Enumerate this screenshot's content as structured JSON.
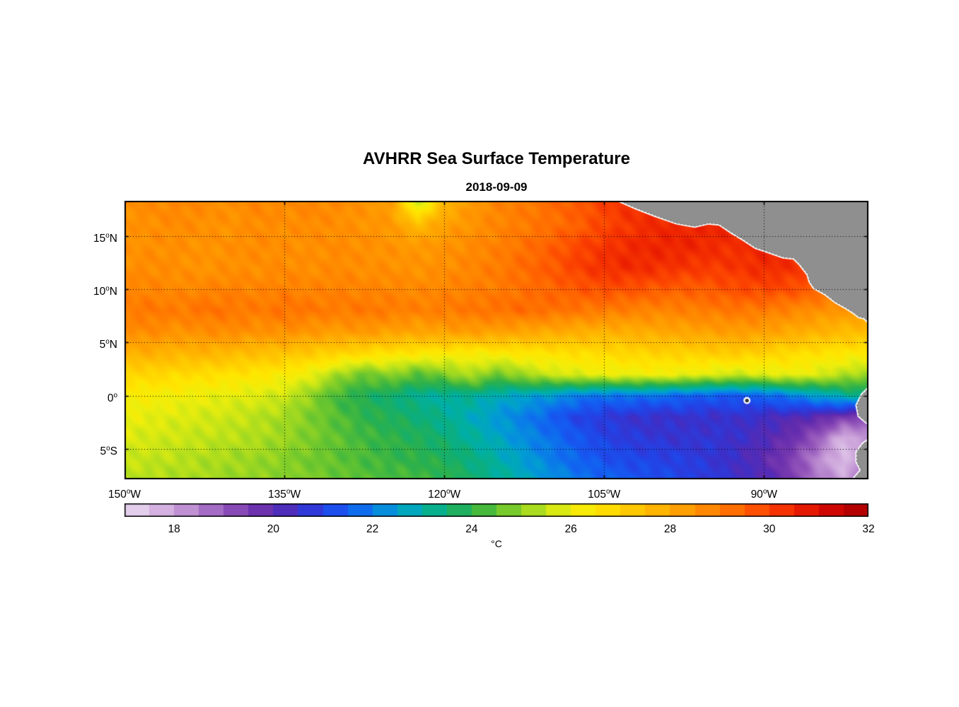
{
  "figure": {
    "title": "AVHRR Sea Surface Temperature",
    "subtitle": "2018-09-09"
  },
  "chart_data": {
    "type": "heatmap",
    "title": "AVHRR Sea Surface Temperature",
    "subtitle": "2018-09-09",
    "xlabel": "",
    "ylabel": "",
    "grid": true,
    "deg_glyph": "o",
    "xlim": [
      -150,
      -80.2
    ],
    "ylim": [
      -7.85,
      18.3
    ],
    "x_ticks": [
      {
        "value": -150,
        "num": "150",
        "hem": "W"
      },
      {
        "value": -135,
        "num": "135",
        "hem": "W"
      },
      {
        "value": -120,
        "num": "120",
        "hem": "W"
      },
      {
        "value": -105,
        "num": "105",
        "hem": "W"
      },
      {
        "value": -90,
        "num": "90",
        "hem": "W"
      }
    ],
    "y_ticks": [
      {
        "value": 15,
        "num": "15",
        "hem": "N"
      },
      {
        "value": 10,
        "num": "10",
        "hem": "N"
      },
      {
        "value": 5,
        "num": "5",
        "hem": "N"
      },
      {
        "value": 0,
        "num": "0",
        "hem": ""
      },
      {
        "value": -5,
        "num": "5",
        "hem": "S"
      }
    ],
    "colorbar": {
      "orientation": "horizontal",
      "range": [
        17,
        32
      ],
      "segment_step": 0.5,
      "ticks": [
        18,
        20,
        22,
        24,
        26,
        28,
        30,
        32
      ],
      "unit": "°C",
      "colormap": [
        {
          "t": 17.0,
          "c": "#EADCEF"
        },
        {
          "t": 17.5,
          "c": "#DCC0E6"
        },
        {
          "t": 18.0,
          "c": "#CBA2DA"
        },
        {
          "t": 18.5,
          "c": "#B27FCB"
        },
        {
          "t": 19.0,
          "c": "#9659BC"
        },
        {
          "t": 19.5,
          "c": "#7A3BB0"
        },
        {
          "t": 20.0,
          "c": "#5F2AAE"
        },
        {
          "t": 20.5,
          "c": "#3C2FC8"
        },
        {
          "t": 21.0,
          "c": "#2342E6"
        },
        {
          "t": 21.5,
          "c": "#145CF2"
        },
        {
          "t": 22.0,
          "c": "#0A7EE8"
        },
        {
          "t": 22.5,
          "c": "#019ED2"
        },
        {
          "t": 23.0,
          "c": "#00AFA5"
        },
        {
          "t": 23.5,
          "c": "#0FAE74"
        },
        {
          "t": 24.0,
          "c": "#2EB14A"
        },
        {
          "t": 24.5,
          "c": "#5FC232"
        },
        {
          "t": 25.0,
          "c": "#90D325"
        },
        {
          "t": 25.5,
          "c": "#C3E418"
        },
        {
          "t": 26.0,
          "c": "#EEEE0C"
        },
        {
          "t": 26.5,
          "c": "#FFE600"
        },
        {
          "t": 27.0,
          "c": "#FFD200"
        },
        {
          "t": 27.5,
          "c": "#FFBE00"
        },
        {
          "t": 28.0,
          "c": "#FFAA00"
        },
        {
          "t": 28.5,
          "c": "#FF9400"
        },
        {
          "t": 29.0,
          "c": "#FF7C00"
        },
        {
          "t": 29.5,
          "c": "#FF6000"
        },
        {
          "t": 30.0,
          "c": "#FB4000"
        },
        {
          "t": 30.5,
          "c": "#EE2400"
        },
        {
          "t": 31.0,
          "c": "#DC0C00"
        },
        {
          "t": 31.5,
          "c": "#C20000"
        },
        {
          "t": 32.0,
          "c": "#A60000"
        }
      ]
    },
    "sst_grid": {
      "lons": [
        -150,
        -147.5,
        -145,
        -142.5,
        -140,
        -137.5,
        -135,
        -132.5,
        -130,
        -127.5,
        -125,
        -122.5,
        -120,
        -117.5,
        -115,
        -112.5,
        -110,
        -107.5,
        -105,
        -102.5,
        -100,
        -97.5,
        -95,
        -92.5,
        -90,
        -87.5,
        -85,
        -82.5,
        -80
      ],
      "lats": [
        18.3,
        16,
        14,
        12,
        10,
        8,
        6,
        4,
        2,
        0,
        -2,
        -4,
        -6,
        -7.85
      ],
      "values_degC": [
        [
          28.6,
          28.7,
          28.8,
          28.7,
          28.6,
          28.8,
          28.7,
          28.8,
          28.7,
          28.5,
          28.3,
          25.2,
          27.6,
          28.4,
          28.8,
          29.0,
          29.3,
          29.6,
          30.0,
          30.3,
          30.5,
          30.6,
          30.6,
          30.5,
          30.4,
          30.3,
          30.2,
          30.0,
          29.8
        ],
        [
          28.5,
          28.6,
          28.7,
          28.6,
          28.5,
          28.7,
          28.6,
          28.7,
          28.6,
          28.5,
          28.4,
          27.6,
          28.2,
          28.5,
          28.8,
          29.0,
          29.2,
          29.5,
          29.9,
          30.2,
          30.4,
          30.5,
          30.5,
          30.4,
          30.3,
          30.4,
          30.2,
          30.0,
          29.8
        ],
        [
          28.5,
          28.6,
          28.6,
          28.5,
          28.6,
          28.7,
          28.6,
          28.6,
          28.7,
          28.6,
          28.5,
          28.4,
          28.5,
          28.7,
          28.9,
          29.2,
          29.5,
          29.9,
          30.2,
          30.4,
          30.5,
          30.5,
          30.4,
          30.3,
          30.5,
          30.4,
          30.2,
          30.0,
          29.8
        ],
        [
          28.6,
          28.7,
          28.6,
          28.5,
          28.6,
          28.6,
          28.7,
          28.6,
          28.7,
          28.6,
          28.6,
          28.5,
          28.6,
          28.8,
          29.0,
          29.3,
          29.6,
          30.0,
          30.3,
          30.4,
          30.3,
          30.2,
          30.1,
          30.2,
          30.4,
          30.3,
          30.0,
          29.7,
          29.5
        ],
        [
          28.8,
          28.8,
          28.7,
          28.8,
          28.9,
          28.8,
          28.9,
          28.8,
          28.9,
          28.8,
          28.8,
          28.7,
          28.8,
          28.9,
          29.0,
          29.2,
          29.4,
          29.6,
          29.8,
          29.7,
          29.6,
          29.5,
          29.6,
          29.8,
          29.9,
          29.8,
          29.5,
          29.2,
          29.0
        ],
        [
          29.0,
          29.1,
          29.0,
          29.2,
          29.1,
          29.0,
          29.2,
          29.1,
          29.0,
          29.1,
          29.0,
          28.9,
          29.0,
          29.1,
          29.2,
          29.3,
          29.2,
          29.1,
          29.0,
          28.9,
          28.8,
          28.9,
          29.0,
          29.1,
          29.0,
          28.8,
          28.6,
          28.4,
          28.3
        ],
        [
          28.6,
          28.7,
          28.5,
          28.6,
          28.7,
          28.5,
          28.6,
          28.4,
          28.3,
          28.4,
          28.2,
          28.1,
          28.2,
          28.3,
          28.2,
          28.1,
          28.0,
          27.9,
          27.8,
          27.9,
          28.0,
          28.1,
          28.2,
          28.3,
          28.2,
          28.0,
          27.8,
          27.6,
          27.5
        ],
        [
          27.8,
          27.9,
          27.7,
          27.8,
          27.6,
          27.5,
          27.4,
          27.2,
          27.0,
          26.8,
          26.6,
          26.5,
          26.4,
          26.3,
          26.4,
          26.5,
          26.6,
          26.7,
          26.8,
          26.9,
          27.0,
          27.0,
          27.1,
          27.2,
          27.0,
          26.8,
          26.6,
          26.5,
          26.4
        ],
        [
          26.8,
          26.9,
          26.8,
          26.7,
          26.6,
          26.5,
          26.3,
          26.0,
          25.2,
          24.6,
          25.0,
          24.4,
          24.8,
          25.4,
          24.6,
          25.2,
          25.6,
          25.8,
          26.0,
          26.0,
          26.1,
          26.0,
          25.8,
          25.6,
          25.8,
          26.0,
          25.8,
          25.4,
          25.0
        ],
        [
          26.3,
          26.2,
          26.1,
          26.0,
          25.9,
          25.8,
          25.6,
          25.0,
          24.2,
          23.8,
          23.5,
          23.2,
          23.0,
          23.2,
          22.8,
          22.6,
          22.4,
          22.0,
          21.8,
          21.9,
          21.8,
          21.6,
          21.5,
          21.4,
          21.6,
          22.0,
          22.5,
          23.0,
          23.5
        ],
        [
          26.0,
          25.9,
          25.8,
          25.7,
          25.6,
          25.4,
          25.2,
          24.8,
          24.4,
          24.0,
          23.8,
          23.5,
          23.2,
          22.8,
          22.4,
          22.0,
          21.5,
          21.0,
          20.8,
          20.6,
          20.5,
          20.6,
          20.5,
          20.6,
          20.4,
          20.2,
          20.0,
          19.6,
          19.2
        ],
        [
          25.8,
          25.7,
          25.6,
          25.5,
          25.4,
          25.3,
          25.1,
          24.8,
          24.5,
          24.2,
          24.0,
          23.8,
          23.5,
          23.1,
          22.7,
          22.2,
          21.8,
          21.4,
          21.0,
          20.8,
          20.7,
          20.6,
          20.7,
          20.5,
          20.2,
          19.8,
          19.0,
          17.6,
          18.4
        ],
        [
          25.6,
          25.5,
          25.4,
          25.3,
          25.2,
          25.1,
          24.9,
          24.7,
          24.5,
          24.3,
          24.1,
          24.0,
          23.8,
          23.4,
          23.0,
          22.5,
          22.0,
          21.6,
          21.3,
          21.1,
          21.0,
          20.9,
          20.7,
          20.4,
          20.0,
          19.4,
          18.4,
          17.5,
          18.8
        ],
        [
          25.4,
          25.3,
          25.3,
          25.2,
          25.1,
          25.0,
          24.9,
          24.8,
          24.6,
          24.4,
          24.3,
          24.2,
          24.0,
          23.6,
          23.2,
          22.8,
          22.3,
          21.9,
          21.6,
          21.4,
          21.2,
          21.0,
          20.8,
          20.5,
          20.2,
          19.6,
          18.6,
          18.0,
          19.0
        ]
      ]
    },
    "land": {
      "color": "#8F8F8F",
      "coast_fringe_color": "#FFFFFF",
      "galapagos_marker": {
        "lon": -91.6,
        "lat": -0.45
      },
      "polygons": {
        "central_america": [
          [
            -104.5,
            19.5
          ],
          [
            -103.6,
            18.3
          ],
          [
            -102.0,
            17.6
          ],
          [
            -100.2,
            16.9
          ],
          [
            -98.2,
            16.2
          ],
          [
            -96.5,
            15.9
          ],
          [
            -95.2,
            16.2
          ],
          [
            -94.2,
            16.1
          ],
          [
            -93.0,
            15.3
          ],
          [
            -92.0,
            14.7
          ],
          [
            -90.8,
            13.9
          ],
          [
            -89.6,
            13.5
          ],
          [
            -88.2,
            13.0
          ],
          [
            -87.2,
            12.9
          ],
          [
            -86.6,
            12.3
          ],
          [
            -85.9,
            11.4
          ],
          [
            -85.7,
            10.7
          ],
          [
            -85.3,
            10.1
          ],
          [
            -84.9,
            9.9
          ],
          [
            -84.2,
            9.5
          ],
          [
            -83.3,
            8.8
          ],
          [
            -82.4,
            8.3
          ],
          [
            -81.6,
            7.8
          ],
          [
            -81.1,
            7.4
          ],
          [
            -80.6,
            7.3
          ],
          [
            -80.2,
            6.9
          ],
          [
            -79.7,
            6.3
          ],
          [
            -78.5,
            6.0
          ],
          [
            -78.5,
            19.5
          ]
        ],
        "ecuador": [
          [
            -79.6,
            1.6
          ],
          [
            -80.2,
            0.7
          ],
          [
            -80.8,
            0.1
          ],
          [
            -81.3,
            -0.9
          ],
          [
            -81.1,
            -1.9
          ],
          [
            -80.4,
            -2.5
          ],
          [
            -79.7,
            -2.8
          ],
          [
            -79.3,
            -1.5
          ]
        ],
        "peru": [
          [
            -79.7,
            -3.8
          ],
          [
            -80.7,
            -4.5
          ],
          [
            -81.3,
            -5.3
          ],
          [
            -81.3,
            -6.2
          ],
          [
            -80.9,
            -7.0
          ],
          [
            -81.6,
            -7.8
          ],
          [
            -82.3,
            -8.5
          ],
          [
            -79.2,
            -8.6
          ]
        ]
      }
    }
  }
}
